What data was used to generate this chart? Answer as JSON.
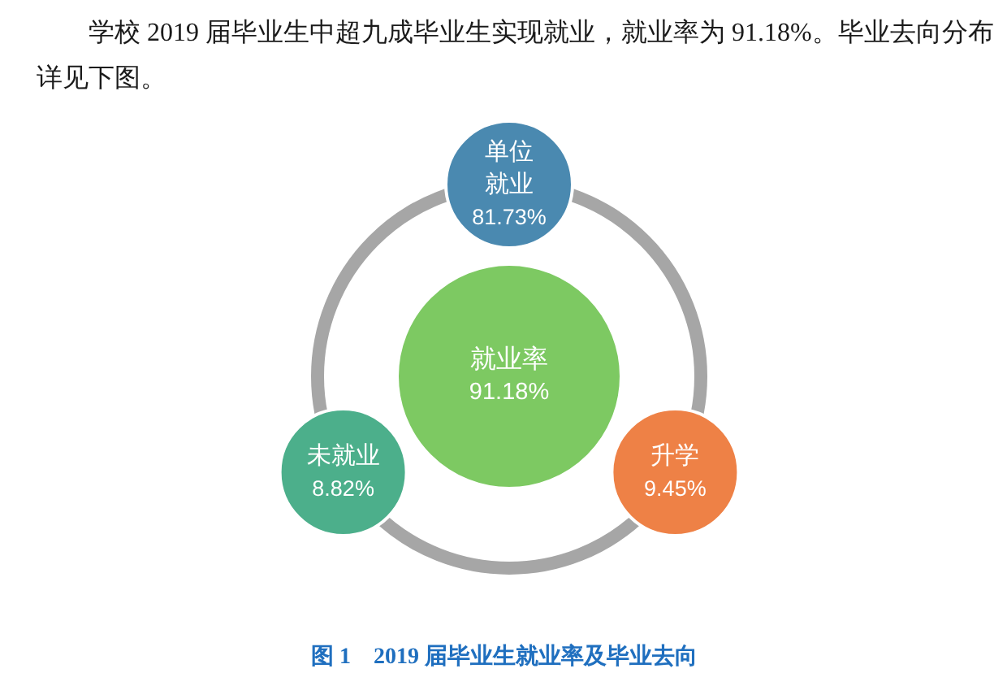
{
  "chart_data": {
    "type": "other",
    "title": "图 1　2019 届毕业生就业率及毕业去向",
    "annotations": [
      "学校 2019 届毕业生中超九成毕业生实现就业，就业率为 91.18%。毕业去向分布详见下图。"
    ],
    "categories": [
      "就业率",
      "单位就业",
      "升学",
      "未就业"
    ],
    "values": [
      91.18,
      81.73,
      9.45,
      8.82
    ],
    "value_labels": [
      "91.18%",
      "81.73%",
      "9.45%",
      "8.82%"
    ],
    "colors": [
      "#7dc962",
      "#4a89b0",
      "#ee8146",
      "#4caf8b"
    ]
  }
}
